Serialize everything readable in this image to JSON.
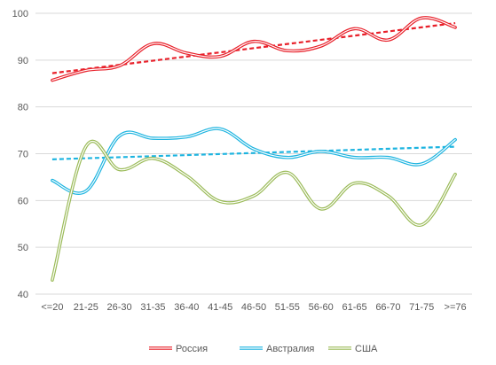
{
  "chart_data": {
    "type": "line",
    "title": "",
    "xlabel": "",
    "ylabel": "",
    "categories": [
      "<=20",
      "21-25",
      "26-30",
      "31-35",
      "36-40",
      "41-45",
      "46-50",
      "51-55",
      "56-60",
      "61-65",
      "66-70",
      "71-75",
      ">=76"
    ],
    "ylim": [
      40,
      100
    ],
    "yticks": [
      40,
      50,
      60,
      70,
      80,
      90,
      100
    ],
    "grid": true,
    "legend_position": "bottom",
    "series": [
      {
        "name": "Россия",
        "color": "#e8202a",
        "values": [
          85.7,
          87.8,
          88.8,
          93.5,
          91.5,
          90.8,
          94.0,
          92.0,
          93.0,
          96.7,
          94.3,
          99.0,
          97.0
        ],
        "trendline": [
          87.2,
          97.9
        ]
      },
      {
        "name": "Австралия",
        "color": "#1db4e0",
        "values": [
          64.3,
          62.0,
          73.8,
          73.3,
          73.6,
          75.3,
          71.0,
          69.2,
          70.5,
          69.2,
          69.2,
          67.8,
          73.0
        ],
        "trendline": [
          68.8,
          71.5
        ]
      },
      {
        "name": "США",
        "color": "#9bbb59",
        "values": [
          43.0,
          71.5,
          66.6,
          69.0,
          65.3,
          59.8,
          61.0,
          66.0,
          58.2,
          63.7,
          61.0,
          54.8,
          65.6
        ],
        "trendline": null
      }
    ]
  }
}
